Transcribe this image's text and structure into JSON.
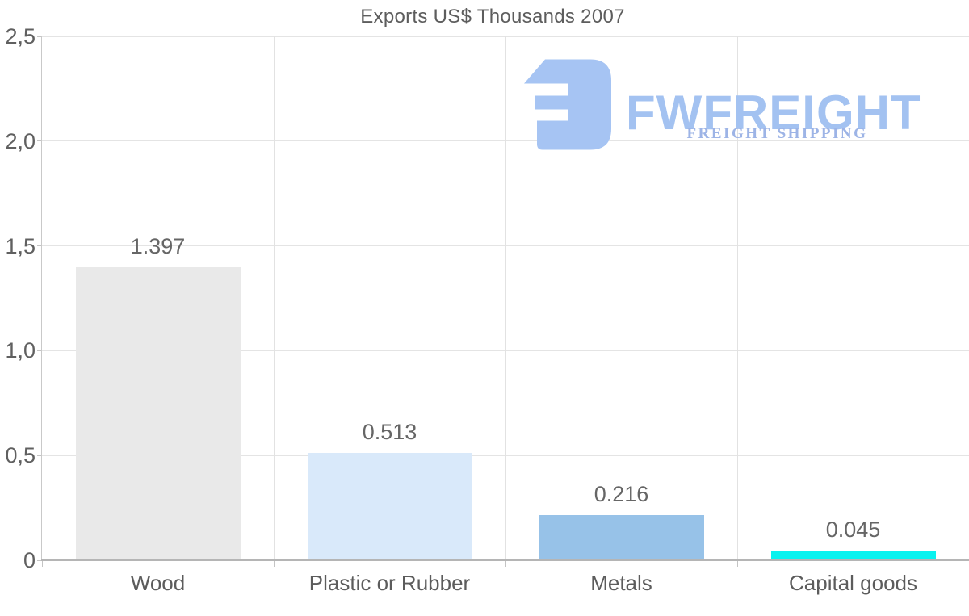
{
  "chart_data": {
    "type": "bar",
    "title": "Exports US$ Thousands 2007",
    "categories": [
      "Wood",
      "Plastic or Rubber",
      "Metals",
      "Capital goods"
    ],
    "values": [
      1.397,
      0.513,
      0.216,
      0.045
    ],
    "value_labels": [
      "1.397",
      "0.513",
      "0.216",
      "0.045"
    ],
    "bar_colors": [
      "#e9e9e9",
      "#d9e9fa",
      "#97c2e8",
      "#0af2ef"
    ],
    "xlabel": "",
    "ylabel": "",
    "ylim": [
      0,
      2.5
    ],
    "yticks": [
      {
        "value": 0,
        "label": "0"
      },
      {
        "value": 0.5,
        "label": "0,5"
      },
      {
        "value": 1.0,
        "label": "1,0"
      },
      {
        "value": 1.5,
        "label": "1,5"
      },
      {
        "value": 2.0,
        "label": "2,0"
      },
      {
        "value": 2.5,
        "label": "2,5"
      }
    ],
    "grid": true,
    "legend": false
  },
  "watermark": {
    "brand": "FWFREIGHT",
    "tagline": "FREIGHT SHIPPING",
    "icon": "fwfreight-logo-icon",
    "brand_color": "#a3c2f1",
    "tagline_color": "#9db4e6",
    "icon_color": "#a6c4f3"
  },
  "style_colors": {
    "title_text": "#5d5d5d",
    "axis_text": "#606060",
    "gridline": "#e4e4e4",
    "axis_line": "#b5b5b5",
    "background": "#ffffff"
  }
}
